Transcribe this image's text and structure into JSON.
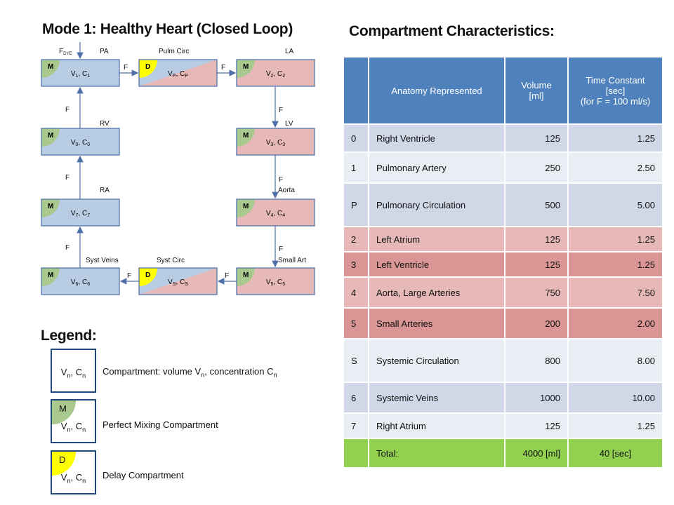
{
  "left_title": "Mode 1: Healthy Heart (Closed Loop)",
  "right_title": "Compartment Characteristics:",
  "legend_title": "Legend:",
  "colors": {
    "blue_box": "#b8cce4",
    "pink_box": "#e6b9b8",
    "mix_quarter": "#a9c98e",
    "delay_quarter": "#ffff00",
    "header_blue": "#4f81bd",
    "row_blue_dark": "#d0d8e8",
    "row_blue_light": "#e9edf4",
    "row_pink_light": "#e6b9b8",
    "row_pink_dark": "#d99694",
    "total_green": "#92d050"
  },
  "diagram": {
    "f_dye": "F",
    "f_dye_sub": "DYE",
    "region_labels": {
      "pa": "PA",
      "pulm_circ": "Pulm Circ",
      "la": "LA",
      "rv": "RV",
      "lv": "LV",
      "ra": "RA",
      "aorta": "Aorta",
      "syst_veins": "Syst Veins",
      "syst_circ": "Syst Circ",
      "small_art": "Small Art"
    },
    "flow_label": "F",
    "mix_letter": "M",
    "delay_letter": "D",
    "boxes": {
      "pa": {
        "v": "1",
        "c": "1"
      },
      "pulm": {
        "v": "P",
        "c": "P"
      },
      "la": {
        "v": "2",
        "c": "2"
      },
      "rv": {
        "v": "0",
        "c": "0"
      },
      "lv": {
        "v": "3",
        "c": "3"
      },
      "ra": {
        "v": "7",
        "c": "7"
      },
      "aorta": {
        "v": "4",
        "c": "4"
      },
      "veins": {
        "v": "6",
        "c": "6"
      },
      "syst": {
        "v": "S",
        "c": "S"
      },
      "small": {
        "v": "5",
        "c": "5"
      }
    }
  },
  "legend": {
    "compartment": {
      "box": "V",
      "box_sub": "n",
      "box_mid": ", C",
      "box_sub2": "n",
      "text": "Compartment: volume V",
      "text_sub": "n",
      "text_mid": ", concentration C",
      "text_sub2": "n"
    },
    "mixing": {
      "letter": "M",
      "text": "Perfect Mixing Compartment"
    },
    "delay": {
      "letter": "D",
      "text": "Delay Compartment"
    }
  },
  "table": {
    "headers": [
      "",
      "Anatomy Represented",
      "Volume\n[ml]",
      "Time Constant\n[sec]\n(for F = 100 ml/s)"
    ],
    "rows": [
      {
        "id": "0",
        "anatomy": "Right Ventricle",
        "volume": "125",
        "tc": "1.25"
      },
      {
        "id": "1",
        "anatomy": "Pulmonary Artery",
        "volume": "250",
        "tc": "2.50"
      },
      {
        "id": "P",
        "anatomy": "Pulmonary Circulation",
        "volume": "500",
        "tc": "5.00"
      },
      {
        "id": "2",
        "anatomy": "Left Atrium",
        "volume": "125",
        "tc": "1.25"
      },
      {
        "id": "3",
        "anatomy": "Left Ventricle",
        "volume": "125",
        "tc": "1.25"
      },
      {
        "id": "4",
        "anatomy": "Aorta, Large Arteries",
        "volume": "750",
        "tc": "7.50"
      },
      {
        "id": "5",
        "anatomy": "Small Arteries",
        "volume": "200",
        "tc": "2.00"
      },
      {
        "id": "S",
        "anatomy": "Systemic Circulation",
        "volume": "800",
        "tc": "8.00"
      },
      {
        "id": "6",
        "anatomy": "Systemic Veins",
        "volume": "1000",
        "tc": "10.00"
      },
      {
        "id": "7",
        "anatomy": "Right Atrium",
        "volume": "125",
        "tc": "1.25"
      }
    ],
    "total": {
      "label": "Total:",
      "volume": "4000 [ml]",
      "tc": "40 [sec]"
    }
  }
}
